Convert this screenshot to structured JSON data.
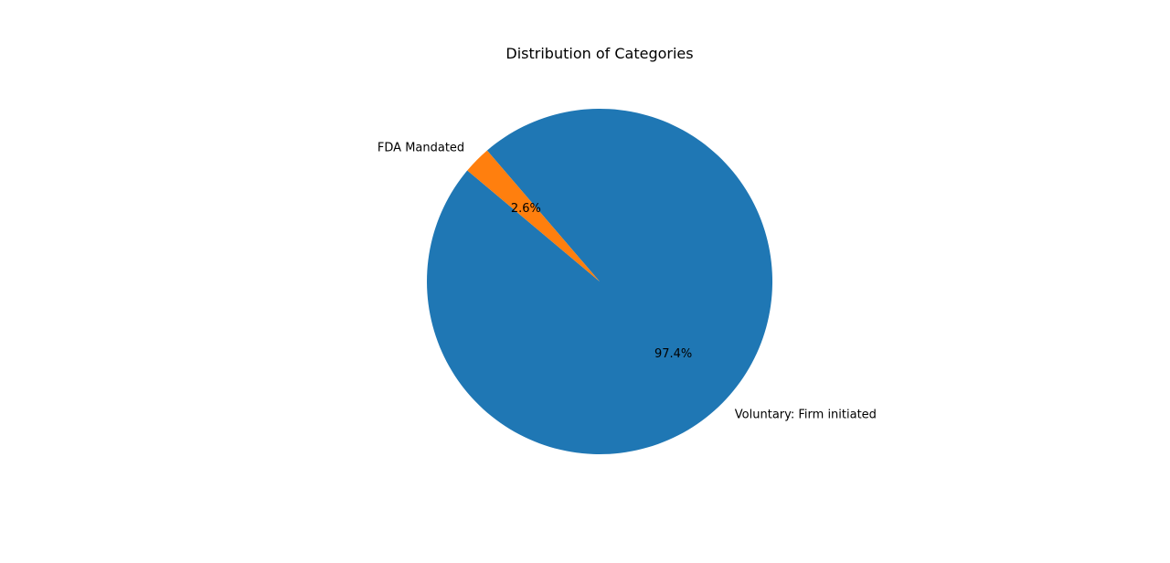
{
  "chart_data": {
    "type": "pie",
    "title": "Distribution of Categories",
    "slices": [
      {
        "label": "Voluntary: Firm initiated",
        "value": 97.4,
        "pct_label": "97.4%",
        "color": "#1f77b4"
      },
      {
        "label": "FDA Mandated",
        "value": 2.6,
        "pct_label": "2.6%",
        "color": "#ff7f0e"
      }
    ],
    "start_angle_deg": 140,
    "direction": "counterclockwise",
    "legend": "none"
  }
}
